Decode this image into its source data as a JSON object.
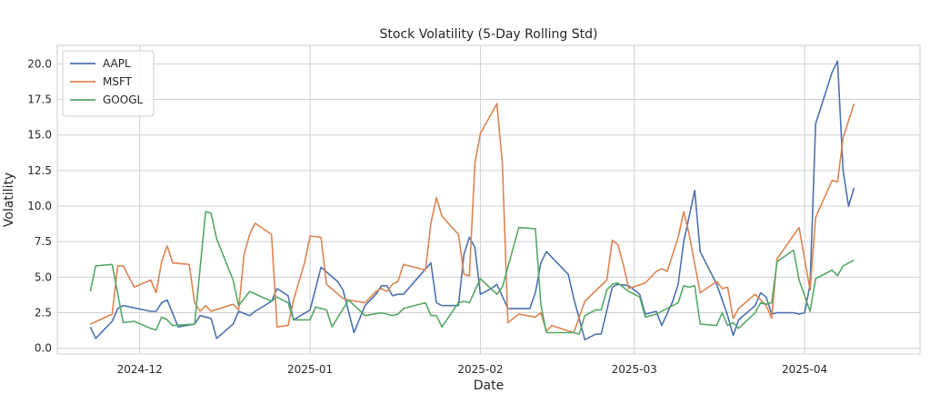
{
  "chart_data": {
    "type": "line",
    "title": "Stock Volatility (5-Day Rolling Std)",
    "xlabel": "Date",
    "ylabel": "Volatility",
    "ylim": [
      -0.4,
      21.3
    ],
    "xlim": [
      "2024-11-16",
      "2025-04-22"
    ],
    "grid": true,
    "legend_position": "top-left",
    "x_ticks": [
      {
        "date": "2024-12-01",
        "label": "2024-12"
      },
      {
        "date": "2025-01-01",
        "label": "2025-01"
      },
      {
        "date": "2025-02-01",
        "label": "2025-02"
      },
      {
        "date": "2025-03-01",
        "label": "2025-03"
      },
      {
        "date": "2025-04-01",
        "label": "2025-04"
      }
    ],
    "y_ticks": [
      {
        "value": 0,
        "label": "0.0"
      },
      {
        "value": 2.5,
        "label": "2.5"
      },
      {
        "value": 5,
        "label": "5.0"
      },
      {
        "value": 7.5,
        "label": "7.5"
      },
      {
        "value": 10,
        "label": "10.0"
      },
      {
        "value": 12.5,
        "label": "12.5"
      },
      {
        "value": 15,
        "label": "15.0"
      },
      {
        "value": 17.5,
        "label": "17.5"
      },
      {
        "value": 20,
        "label": "20.0"
      }
    ],
    "series": [
      {
        "name": "AAPL",
        "color": "#4c72b0",
        "points": [
          [
            "2024-11-22",
            1.5
          ],
          [
            "2024-11-23",
            0.7
          ],
          [
            "2024-11-26",
            1.9
          ],
          [
            "2024-11-27",
            2.8
          ],
          [
            "2024-11-28",
            3.0
          ],
          [
            "2024-12-03",
            2.6
          ],
          [
            "2024-12-04",
            2.6
          ],
          [
            "2024-12-05",
            3.2
          ],
          [
            "2024-12-06",
            3.4
          ],
          [
            "2024-12-08",
            1.5
          ],
          [
            "2024-12-11",
            1.7
          ],
          [
            "2024-12-12",
            2.3
          ],
          [
            "2024-12-14",
            2.1
          ],
          [
            "2024-12-15",
            0.7
          ],
          [
            "2024-12-18",
            1.7
          ],
          [
            "2024-12-19",
            2.6
          ],
          [
            "2024-12-21",
            2.3
          ],
          [
            "2024-12-22",
            2.6
          ],
          [
            "2024-12-25",
            3.3
          ],
          [
            "2024-12-26",
            4.2
          ],
          [
            "2024-12-28",
            3.7
          ],
          [
            "2024-12-29",
            2.0
          ],
          [
            "2025-01-01",
            2.7
          ],
          [
            "2025-01-03",
            5.7
          ],
          [
            "2025-01-06",
            4.7
          ],
          [
            "2025-01-07",
            4.1
          ],
          [
            "2025-01-09",
            1.1
          ],
          [
            "2025-01-11",
            3.0
          ],
          [
            "2025-01-13",
            3.8
          ],
          [
            "2025-01-14",
            4.4
          ],
          [
            "2025-01-15",
            4.4
          ],
          [
            "2025-01-16",
            3.7
          ],
          [
            "2025-01-17",
            3.8
          ],
          [
            "2025-01-18",
            3.8
          ],
          [
            "2025-01-23",
            6.0
          ],
          [
            "2025-01-24",
            3.2
          ],
          [
            "2025-01-25",
            3.0
          ],
          [
            "2025-01-28",
            3.0
          ],
          [
            "2025-01-29",
            6.6
          ],
          [
            "2025-01-30",
            7.8
          ],
          [
            "2025-01-31",
            7.1
          ],
          [
            "2025-02-01",
            3.8
          ],
          [
            "2025-02-03",
            4.2
          ],
          [
            "2025-02-04",
            4.5
          ],
          [
            "2025-02-06",
            2.8
          ],
          [
            "2025-02-10",
            2.8
          ],
          [
            "2025-02-11",
            3.9
          ],
          [
            "2025-02-12",
            6.0
          ],
          [
            "2025-02-13",
            6.8
          ],
          [
            "2025-02-17",
            5.2
          ],
          [
            "2025-02-18",
            3.5
          ],
          [
            "2025-02-20",
            0.6
          ],
          [
            "2025-02-22",
            1.0
          ],
          [
            "2025-02-23",
            1.0
          ],
          [
            "2025-02-25",
            4.3
          ],
          [
            "2025-02-26",
            4.5
          ],
          [
            "2025-02-28",
            4.4
          ],
          [
            "2025-03-02",
            3.8
          ],
          [
            "2025-03-03",
            2.4
          ],
          [
            "2025-03-05",
            2.6
          ],
          [
            "2025-03-06",
            1.6
          ],
          [
            "2025-03-08",
            3.3
          ],
          [
            "2025-03-09",
            4.5
          ],
          [
            "2025-03-10",
            7.5
          ],
          [
            "2025-03-12",
            11.1
          ],
          [
            "2025-03-13",
            6.8
          ],
          [
            "2025-03-16",
            4.5
          ],
          [
            "2025-03-18",
            2.3
          ],
          [
            "2025-03-19",
            0.9
          ],
          [
            "2025-03-20",
            2.0
          ],
          [
            "2025-03-23",
            3.0
          ],
          [
            "2025-03-24",
            3.9
          ],
          [
            "2025-03-25",
            3.6
          ],
          [
            "2025-03-26",
            2.4
          ],
          [
            "2025-03-27",
            2.5
          ],
          [
            "2025-03-30",
            2.5
          ],
          [
            "2025-03-31",
            2.4
          ],
          [
            "2025-04-01",
            2.5
          ],
          [
            "2025-04-02",
            4.5
          ],
          [
            "2025-04-03",
            15.8
          ],
          [
            "2025-04-06",
            19.4
          ],
          [
            "2025-04-07",
            20.2
          ],
          [
            "2025-04-08",
            12.5
          ],
          [
            "2025-04-09",
            10.0
          ],
          [
            "2025-04-10",
            11.3
          ]
        ]
      },
      {
        "name": "MSFT",
        "color": "#dd8452",
        "points": [
          [
            "2024-11-22",
            1.7
          ],
          [
            "2024-11-26",
            2.4
          ],
          [
            "2024-11-27",
            5.8
          ],
          [
            "2024-11-28",
            5.8
          ],
          [
            "2024-11-30",
            4.3
          ],
          [
            "2024-12-03",
            4.8
          ],
          [
            "2024-12-04",
            3.9
          ],
          [
            "2024-12-05",
            6.1
          ],
          [
            "2024-12-06",
            7.2
          ],
          [
            "2024-12-07",
            6.0
          ],
          [
            "2024-12-10",
            5.9
          ],
          [
            "2024-12-11",
            3.2
          ],
          [
            "2024-12-12",
            2.6
          ],
          [
            "2024-12-13",
            3.0
          ],
          [
            "2024-12-14",
            2.6
          ],
          [
            "2024-12-18",
            3.1
          ],
          [
            "2024-12-19",
            2.7
          ],
          [
            "2024-12-20",
            6.6
          ],
          [
            "2024-12-21",
            8.0
          ],
          [
            "2024-12-22",
            8.8
          ],
          [
            "2024-12-25",
            8.0
          ],
          [
            "2024-12-26",
            1.5
          ],
          [
            "2024-12-28",
            1.6
          ],
          [
            "2024-12-29",
            3.4
          ],
          [
            "2024-12-31",
            6.0
          ],
          [
            "2025-01-01",
            7.9
          ],
          [
            "2025-01-03",
            7.8
          ],
          [
            "2025-01-04",
            4.5
          ],
          [
            "2025-01-07",
            3.5
          ],
          [
            "2025-01-08",
            3.4
          ],
          [
            "2025-01-11",
            3.2
          ],
          [
            "2025-01-13",
            4.0
          ],
          [
            "2025-01-14",
            4.2
          ],
          [
            "2025-01-15",
            4.0
          ],
          [
            "2025-01-16",
            4.5
          ],
          [
            "2025-01-17",
            4.7
          ],
          [
            "2025-01-18",
            5.9
          ],
          [
            "2025-01-22",
            5.5
          ],
          [
            "2025-01-23",
            8.8
          ],
          [
            "2025-01-24",
            10.6
          ],
          [
            "2025-01-25",
            9.3
          ],
          [
            "2025-01-28",
            8.0
          ],
          [
            "2025-01-29",
            5.2
          ],
          [
            "2025-01-30",
            5.1
          ],
          [
            "2025-01-31",
            13.0
          ],
          [
            "2025-02-01",
            15.1
          ],
          [
            "2025-02-04",
            17.2
          ],
          [
            "2025-02-05",
            13.0
          ],
          [
            "2025-02-06",
            1.8
          ],
          [
            "2025-02-08",
            2.4
          ],
          [
            "2025-02-11",
            2.2
          ],
          [
            "2025-02-12",
            2.5
          ],
          [
            "2025-02-13",
            1.2
          ],
          [
            "2025-02-14",
            1.6
          ],
          [
            "2025-02-18",
            1.1
          ],
          [
            "2025-02-20",
            3.3
          ],
          [
            "2025-02-24",
            4.8
          ],
          [
            "2025-02-25",
            7.6
          ],
          [
            "2025-02-26",
            7.3
          ],
          [
            "2025-02-27",
            5.9
          ],
          [
            "2025-02-28",
            4.2
          ],
          [
            "2025-03-03",
            4.6
          ],
          [
            "2025-03-05",
            5.4
          ],
          [
            "2025-03-06",
            5.6
          ],
          [
            "2025-03-07",
            5.4
          ],
          [
            "2025-03-09",
            7.8
          ],
          [
            "2025-03-10",
            9.6
          ],
          [
            "2025-03-11",
            8.0
          ],
          [
            "2025-03-13",
            3.9
          ],
          [
            "2025-03-16",
            4.7
          ],
          [
            "2025-03-17",
            4.2
          ],
          [
            "2025-03-18",
            4.3
          ],
          [
            "2025-03-19",
            2.1
          ],
          [
            "2025-03-20",
            2.8
          ],
          [
            "2025-03-23",
            3.8
          ],
          [
            "2025-03-25",
            3.0
          ],
          [
            "2025-03-26",
            2.1
          ],
          [
            "2025-03-27",
            6.3
          ],
          [
            "2025-03-31",
            8.5
          ],
          [
            "2025-04-02",
            4.1
          ],
          [
            "2025-04-03",
            9.2
          ],
          [
            "2025-04-06",
            11.8
          ],
          [
            "2025-04-07",
            11.7
          ],
          [
            "2025-04-08",
            14.8
          ],
          [
            "2025-04-10",
            17.2
          ]
        ]
      },
      {
        "name": "GOOGL",
        "color": "#55a868",
        "points": [
          [
            "2024-11-22",
            4.0
          ],
          [
            "2024-11-23",
            5.8
          ],
          [
            "2024-11-26",
            5.9
          ],
          [
            "2024-11-28",
            1.8
          ],
          [
            "2024-11-30",
            1.9
          ],
          [
            "2024-12-03",
            1.4
          ],
          [
            "2024-12-04",
            1.3
          ],
          [
            "2024-12-05",
            2.2
          ],
          [
            "2024-12-06",
            2.0
          ],
          [
            "2024-12-07",
            1.6
          ],
          [
            "2024-12-11",
            1.7
          ],
          [
            "2024-12-13",
            9.6
          ],
          [
            "2024-12-14",
            9.5
          ],
          [
            "2024-12-15",
            7.7
          ],
          [
            "2024-12-18",
            4.8
          ],
          [
            "2024-12-19",
            3.0
          ],
          [
            "2024-12-21",
            4.0
          ],
          [
            "2024-12-25",
            3.3
          ],
          [
            "2024-12-26",
            3.6
          ],
          [
            "2024-12-28",
            3.2
          ],
          [
            "2024-12-29",
            2.0
          ],
          [
            "2025-01-01",
            2.0
          ],
          [
            "2025-01-02",
            2.9
          ],
          [
            "2025-01-04",
            2.7
          ],
          [
            "2025-01-05",
            1.5
          ],
          [
            "2025-01-08",
            3.4
          ],
          [
            "2025-01-11",
            2.3
          ],
          [
            "2025-01-14",
            2.5
          ],
          [
            "2025-01-15",
            2.4
          ],
          [
            "2025-01-16",
            2.3
          ],
          [
            "2025-01-17",
            2.4
          ],
          [
            "2025-01-18",
            2.8
          ],
          [
            "2025-01-22",
            3.2
          ],
          [
            "2025-01-23",
            2.3
          ],
          [
            "2025-01-24",
            2.3
          ],
          [
            "2025-01-25",
            1.5
          ],
          [
            "2025-01-28",
            3.2
          ],
          [
            "2025-01-29",
            3.3
          ],
          [
            "2025-01-30",
            3.2
          ],
          [
            "2025-02-01",
            4.9
          ],
          [
            "2025-02-04",
            3.8
          ],
          [
            "2025-02-05",
            4.3
          ],
          [
            "2025-02-08",
            8.5
          ],
          [
            "2025-02-11",
            8.4
          ],
          [
            "2025-02-12",
            3.1
          ],
          [
            "2025-02-13",
            1.1
          ],
          [
            "2025-02-18",
            1.1
          ],
          [
            "2025-02-19",
            1.0
          ],
          [
            "2025-02-20",
            2.3
          ],
          [
            "2025-02-22",
            2.7
          ],
          [
            "2025-02-23",
            2.7
          ],
          [
            "2025-02-24",
            4.1
          ],
          [
            "2025-02-25",
            4.5
          ],
          [
            "2025-02-26",
            4.6
          ],
          [
            "2025-02-28",
            4.0
          ],
          [
            "2025-03-01",
            3.8
          ],
          [
            "2025-03-02",
            3.6
          ],
          [
            "2025-03-03",
            2.2
          ],
          [
            "2025-03-05",
            2.4
          ],
          [
            "2025-03-08",
            3.0
          ],
          [
            "2025-03-09",
            3.2
          ],
          [
            "2025-03-10",
            4.4
          ],
          [
            "2025-03-11",
            4.3
          ],
          [
            "2025-03-12",
            4.4
          ],
          [
            "2025-03-13",
            1.7
          ],
          [
            "2025-03-16",
            1.6
          ],
          [
            "2025-03-17",
            2.5
          ],
          [
            "2025-03-18",
            1.6
          ],
          [
            "2025-03-19",
            1.8
          ],
          [
            "2025-03-20",
            1.4
          ],
          [
            "2025-03-23",
            2.5
          ],
          [
            "2025-03-24",
            3.2
          ],
          [
            "2025-03-25",
            3.1
          ],
          [
            "2025-03-26",
            3.2
          ],
          [
            "2025-03-27",
            6.1
          ],
          [
            "2025-03-30",
            6.9
          ],
          [
            "2025-03-31",
            4.8
          ],
          [
            "2025-04-02",
            2.6
          ],
          [
            "2025-04-03",
            4.9
          ],
          [
            "2025-04-06",
            5.5
          ],
          [
            "2025-04-07",
            5.1
          ],
          [
            "2025-04-08",
            5.8
          ],
          [
            "2025-04-10",
            6.2
          ]
        ]
      }
    ]
  }
}
